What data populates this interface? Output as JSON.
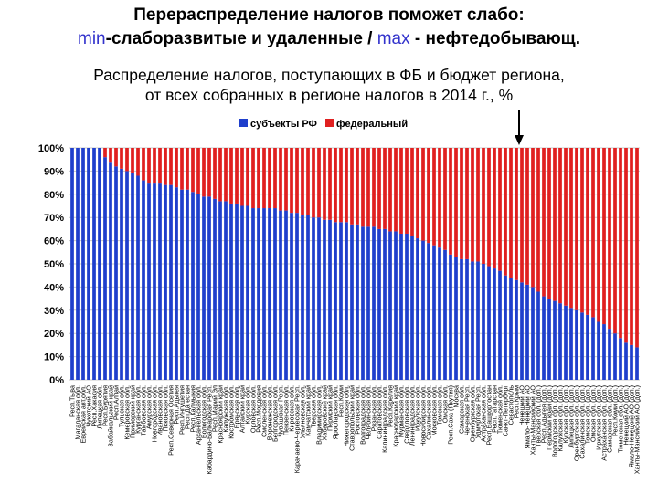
{
  "header": {
    "line1": "Перераспределение налогов поможет слабо:",
    "line2_min": "min",
    "line2_mid": "-слаборазвитые и удаленные / ",
    "line2_max": "max",
    "line2_end": " - нефтедобывающ.",
    "sub1": "Распределение налогов, поступающих в ФБ и бюджет региона,",
    "sub2": "от всех собранных в регионе налогов в 2014 г., %"
  },
  "colors": {
    "regional": "#1f3fcc",
    "federal": "#e02020",
    "grid": "#c8c8c8"
  },
  "chart_data": {
    "type": "bar",
    "stacked": true,
    "ylim": [
      0,
      100
    ],
    "yticks": [
      "0%",
      "10%",
      "20%",
      "30%",
      "40%",
      "50%",
      "60%",
      "70%",
      "80%",
      "90%",
      "100%"
    ],
    "grid": true,
    "legend_position": "top-center",
    "series": [
      {
        "name": "субъекты РФ"
      },
      {
        "name": "федеральный"
      }
    ],
    "categories": [
      "Респ.Тыва",
      "Магаданская обл.",
      "Еврейская авт.обл.",
      "Чукотский АО",
      "Респ.Хакасия",
      "Липецкая обл.",
      "Респ.Бурятия",
      "Забайкальский край",
      "Респ.Алтай",
      "Тульская обл.",
      "Кемеровская обл.",
      "Приморский край",
      "Курганская обл.",
      "Тамбовская обл.",
      "Амурская обл.",
      "Новгородская обл.",
      "Ивановская обл.",
      "Псковская обл.",
      "Респ.Северная Осетия",
      "Респ.Адыгея",
      "Респ.Ингушетия",
      "Респ.Дагестан",
      "Респ.Калмыкия",
      "Архангельская обл.",
      "Вологодская обл.",
      "Кабардино-Балкарская Респ.",
      "Респ.Марий Эл",
      "Красноярский край",
      "Калужская обл.",
      "Костромская обл.",
      "Брянская обл.",
      "Алтайский край",
      "Курская обл.",
      "Орловская обл.",
      "Респ.Мордовия",
      "Смоленская обл.",
      "Воронежская обл.",
      "Белгородская обл.",
      "Чувашская Респ.",
      "Пензенская обл.",
      "Кировская обл.",
      "Карачаево-Черкесская Респ.",
      "Ульяновская обл.",
      "Камчатский край",
      "Тверская обл.",
      "Владимирская обл.",
      "Хабаровский край",
      "Пермский край",
      "Ярославская обл.",
      "Респ.Коми",
      "Нижегородская обл.",
      "Ставропольский край",
      "Ростовская обл.",
      "Волгоградская обл.",
      "Челябинская обл.",
      "Рязанская обл.",
      "Саратовская обл.",
      "Калининградская обл.",
      "Респ.Карелия",
      "Краснодарский край",
      "Мурманская обл.",
      "Свердловская обл.",
      "Ленинградская обл.",
      "Иркутская обл.",
      "Новосибирская обл.",
      "Сахалинская обл.",
      "Московская обл.",
      "Томская обл.",
      "Омская обл.",
      "Респ.Саха (Якутия)",
      "Москва",
      "Самарская обл.",
      "Чеченская Респ.",
      "Оренбургская обл.",
      "Удмуртская Респ.",
      "Астраханская обл.",
      "Респ.Башкортостан",
      "Респ.Татарстан",
      "Тюменская обл.",
      "Санкт-Петербург",
      "Севастополь",
      "Респ.Крым",
      "Ненецкий АО",
      "Ямало-Ненецкий АО",
      "Ханты-Мансийский АО",
      "Тверская обл. (доп.)",
      "Респ.Адыгея (доп.)",
      "Пермский край (доп.)",
      "Вологодская обл. (доп.)",
      "Калужская обл. (доп.)",
      "Курская обл. (доп.)",
      "Липецкая обл. (доп.)",
      "Оренбургская обл. (доп.)",
      "Сахалинская обл. (доп.)",
      "Томская обл. (доп.)",
      "Омская обл. (доп.)",
      "Иркутская обл. (доп.)",
      "Астраханская обл. (доп.)",
      "Самарская обл. (доп.)",
      "Респ.Коми (доп.)",
      "Тюменская обл. (доп.)",
      "Ненецкий АО (доп.)",
      "Ямало-Ненецкий АО (доп.)",
      "Ханты-Мансийский АО (доп.)"
    ],
    "values": [
      100,
      100,
      100,
      100,
      100,
      100,
      96,
      94,
      92,
      91,
      90,
      89,
      88,
      86,
      85,
      85,
      85,
      84,
      84,
      83,
      82,
      82,
      81,
      80,
      79,
      79,
      78,
      77,
      77,
      76,
      76,
      75,
      75,
      74,
      74,
      74,
      74,
      74,
      73,
      73,
      72,
      72,
      71,
      71,
      70,
      70,
      69,
      69,
      68,
      68,
      68,
      67,
      67,
      66,
      66,
      66,
      65,
      65,
      64,
      64,
      63,
      63,
      62,
      61,
      60,
      59,
      58,
      57,
      56,
      54,
      53,
      52,
      52,
      51,
      51,
      50,
      49,
      48,
      47,
      45,
      44,
      43,
      42,
      41,
      40,
      38,
      36,
      35,
      34,
      33,
      32,
      31,
      30,
      29,
      28,
      27,
      25,
      24,
      22,
      20,
      18,
      16,
      15,
      14
    ]
  }
}
